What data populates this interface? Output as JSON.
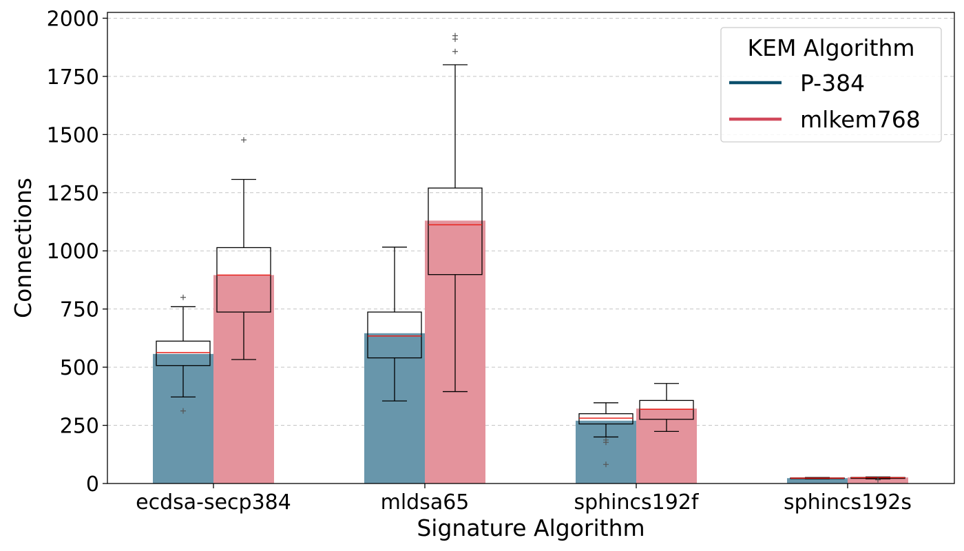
{
  "chart_data": {
    "type": "bar",
    "title": "",
    "xlabel": "Signature Algorithm",
    "ylabel": "Connections",
    "ylim": [
      0,
      2025
    ],
    "yticks": [
      0,
      250,
      500,
      750,
      1000,
      1250,
      1500,
      1750,
      2000
    ],
    "grid": "y-dashed",
    "categories": [
      "ecdsa-secp384",
      "mldsa65",
      "sphincs192f",
      "sphincs192s"
    ],
    "legend": {
      "title": "KEM Algorithm",
      "placement": "top-right"
    },
    "series": [
      {
        "name": "P-384",
        "color": "#0b4f6c",
        "bar_color": "#6896ab",
        "values": [
          557,
          646,
          270,
          23
        ],
        "box": [
          {
            "whisker_low": 372,
            "q1": 507,
            "median": 563,
            "q3": 612,
            "whisker_high": 760,
            "outliers": [
              312,
              800
            ]
          },
          {
            "whisker_low": 355,
            "q1": 540,
            "median": 634,
            "q3": 737,
            "whisker_high": 1016,
            "outliers": []
          },
          {
            "whisker_low": 200,
            "q1": 256,
            "median": 281,
            "q3": 300,
            "whisker_high": 347,
            "outliers": [
              82,
              177,
              187
            ]
          },
          {
            "whisker_low": 20,
            "q1": 21,
            "median": 23,
            "q3": 24,
            "whisker_high": 26,
            "outliers": []
          }
        ]
      },
      {
        "name": "mlkem768",
        "color": "#d1495b",
        "bar_color": "#e4939c",
        "values": [
          896,
          1130,
          322,
          26
        ],
        "box": [
          {
            "whisker_low": 533,
            "q1": 737,
            "median": 896,
            "q3": 1014,
            "whisker_high": 1307,
            "outliers": [
              1477
            ]
          },
          {
            "whisker_low": 395,
            "q1": 898,
            "median": 1112,
            "q3": 1270,
            "whisker_high": 1800,
            "outliers": [
              1857,
              1910,
              1925
            ]
          },
          {
            "whisker_low": 224,
            "q1": 276,
            "median": 319,
            "q3": 357,
            "whisker_high": 430,
            "outliers": []
          },
          {
            "whisker_low": 20,
            "q1": 22,
            "median": 25,
            "q3": 26,
            "whisker_high": 28,
            "outliers": [
              16
            ]
          }
        ]
      }
    ]
  }
}
